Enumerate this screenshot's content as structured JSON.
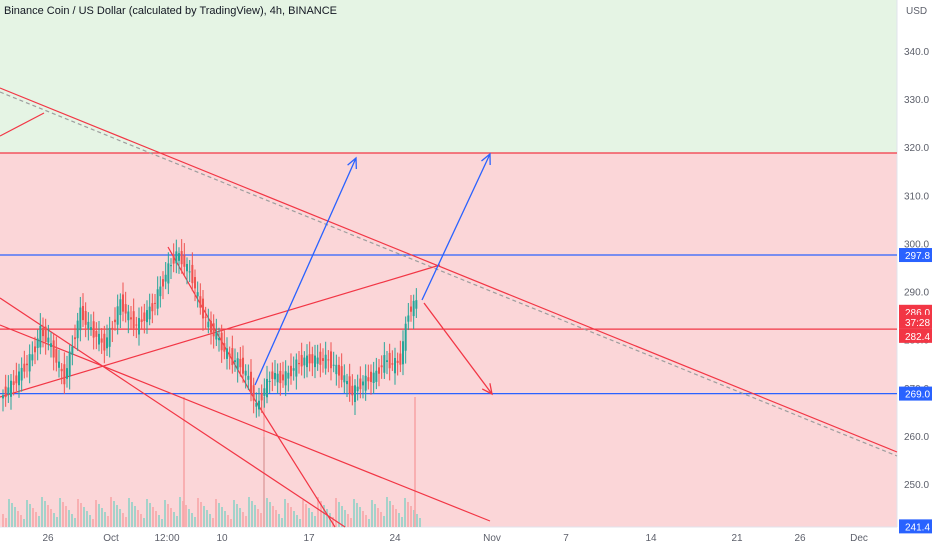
{
  "title": "Binance Coin / US Dollar (calculated by TradingView), 4h, BINANCE",
  "currency": "USD",
  "colors": {
    "up": "#26a69a",
    "down": "#ef5350",
    "green_zone": "#e5f4e4",
    "red_zone": "#fbd6d8",
    "red_line": "#f23645",
    "blue_line": "#2962ff",
    "arrow_blue": "#2962ff",
    "arrow_red": "#f23645"
  },
  "chart_data": {
    "type": "candlestick",
    "y_axis": {
      "min": 240,
      "max": 348,
      "ticks": [
        250.0,
        260.0,
        270.0,
        280.0,
        290.0,
        300.0,
        310.0,
        320.0,
        330.0,
        340.0
      ]
    },
    "x_axis": {
      "ticks": [
        "26",
        "Oct",
        "12:00",
        "10",
        "17",
        "24",
        "Nov",
        "7",
        "14",
        "21",
        "26",
        "Dec"
      ]
    },
    "zones": [
      {
        "name": "green-zone",
        "from": 319.0,
        "to": 352.0,
        "color": "#e5f4e4"
      },
      {
        "name": "red-zone",
        "from": 236.0,
        "to": 319.0,
        "color": "#fbd6d8"
      }
    ],
    "horizontal_lines": [
      {
        "value": 297.8,
        "color": "#2962ff",
        "label": "297.8"
      },
      {
        "value": 282.4,
        "color": "#f23645",
        "label": "282.4"
      },
      {
        "value": 269.0,
        "color": "#2962ff",
        "label": "269.0"
      },
      {
        "value": 319.0,
        "color": "#f23645",
        "label": ""
      }
    ],
    "price_badges": [
      {
        "label": "297.8",
        "value": 297.8,
        "color": "#2962ff"
      },
      {
        "label": "286.0",
        "value": 286.0,
        "color": "#f23645"
      },
      {
        "label": "37:28",
        "value": 283.9,
        "color": "#f23645"
      },
      {
        "label": "282.4",
        "value": 281.0,
        "color": "#f23645"
      },
      {
        "label": "269.0",
        "value": 269.0,
        "color": "#2962ff"
      },
      {
        "label": "241.4",
        "value": 241.4,
        "color": "#2962ff"
      }
    ],
    "price_trend": [
      [
        0,
        268
      ],
      [
        2,
        272
      ],
      [
        4,
        277
      ],
      [
        5,
        282
      ],
      [
        6,
        280
      ],
      [
        7,
        276
      ],
      [
        8,
        272
      ],
      [
        10,
        286
      ],
      [
        11,
        283
      ],
      [
        13,
        279
      ],
      [
        14,
        283
      ],
      [
        15,
        288
      ],
      [
        16,
        285
      ],
      [
        17,
        283
      ],
      [
        19,
        287
      ],
      [
        20,
        291
      ],
      [
        21,
        295
      ],
      [
        22,
        298
      ],
      [
        23,
        296
      ],
      [
        24,
        293
      ],
      [
        25,
        287
      ],
      [
        26,
        283
      ],
      [
        27,
        281
      ],
      [
        28,
        278
      ],
      [
        29,
        276
      ],
      [
        30,
        275
      ],
      [
        31,
        272
      ],
      [
        32,
        266
      ],
      [
        33,
        270
      ],
      [
        34,
        273
      ],
      [
        35,
        272
      ],
      [
        36,
        273
      ],
      [
        37,
        275
      ],
      [
        38,
        276
      ],
      [
        39,
        276
      ],
      [
        40,
        276
      ],
      [
        41,
        276
      ],
      [
        42,
        274
      ],
      [
        43,
        272
      ],
      [
        44,
        269
      ],
      [
        45,
        271
      ],
      [
        46,
        272
      ],
      [
        47,
        273
      ],
      [
        48,
        276
      ],
      [
        49,
        275
      ],
      [
        50,
        276
      ],
      [
        51,
        286
      ],
      [
        52,
        288
      ]
    ],
    "volume_spikes": [
      183,
      263,
      414
    ]
  }
}
